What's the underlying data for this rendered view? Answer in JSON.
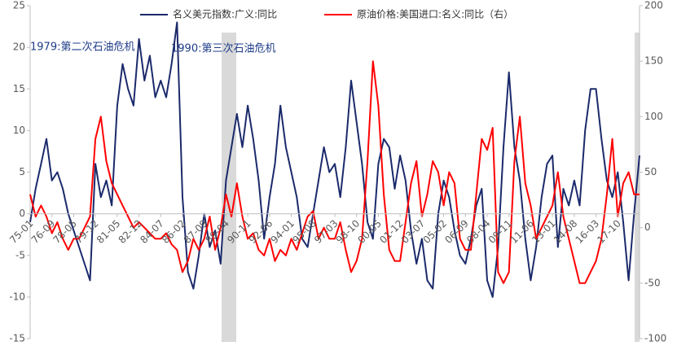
{
  "chart_data": {
    "type": "line",
    "annotations": [
      "1979:第二次石油危机",
      "1990:第三次石油危机"
    ],
    "categories": [
      "75-01",
      null,
      null,
      null,
      "76-09",
      null,
      null,
      null,
      "78-05",
      null,
      null,
      null,
      "79-12",
      null,
      null,
      null,
      "81-05",
      null,
      null,
      null,
      "82-12",
      null,
      null,
      null,
      "84-07",
      null,
      null,
      null,
      "86-02",
      null,
      null,
      null,
      "87-09",
      null,
      null,
      null,
      "89-04",
      null,
      null,
      null,
      "90-11",
      null,
      null,
      null,
      "92-06",
      null,
      null,
      null,
      "94-01",
      null,
      null,
      null,
      "95-08",
      null,
      null,
      null,
      "97-03",
      null,
      null,
      null,
      "98-10",
      null,
      null,
      null,
      "00-05",
      null,
      null,
      null,
      "01-12",
      null,
      null,
      null,
      "03-07",
      null,
      null,
      null,
      "05-02",
      null,
      null,
      null,
      "06-09",
      null,
      null,
      null,
      "08-04",
      null,
      null,
      null,
      "09-11",
      null,
      null,
      null,
      "11-06",
      null,
      null,
      null,
      "13-01",
      null,
      null,
      null,
      "14-08",
      null,
      null,
      null,
      "16-03",
      null,
      null,
      null,
      "17-10",
      null,
      null,
      null,
      null
    ],
    "series": [
      {
        "name": "名义美元指数:广义:同比",
        "color": "#1b2a6b",
        "axis": "y",
        "values": [
          -1,
          3,
          6,
          9,
          4,
          5,
          3,
          0,
          -2,
          -4,
          -6,
          -8,
          6,
          2,
          4,
          1,
          13,
          18,
          15,
          13,
          21,
          16,
          19,
          14,
          16,
          14,
          18,
          23,
          2,
          -7,
          -9,
          -5,
          0,
          -4,
          -2,
          -6,
          4,
          8,
          12,
          8,
          13,
          9,
          4,
          -3,
          2,
          6,
          13,
          8,
          5,
          2,
          -3,
          -4,
          0,
          4,
          8,
          5,
          6,
          2,
          8,
          16,
          11,
          6,
          -1,
          -3,
          6,
          9,
          8,
          3,
          7,
          4,
          -2,
          -6,
          -3,
          -8,
          -9,
          0,
          4,
          2,
          -2,
          -5,
          -6,
          -3,
          1,
          3,
          -8,
          -10,
          -4,
          8,
          17,
          8,
          4,
          -3,
          -8,
          -4,
          2,
          6,
          7,
          -4,
          3,
          1,
          4,
          1,
          10,
          15,
          15,
          9,
          4,
          2,
          5,
          -1,
          -8,
          0,
          7
        ]
      },
      {
        "name": "原油价格:美国进口:名义:同比（右）",
        "color": "#ff0000",
        "axis": "y2",
        "values": [
          30,
          10,
          20,
          10,
          -5,
          5,
          -10,
          -20,
          -10,
          -10,
          0,
          10,
          80,
          100,
          60,
          40,
          30,
          20,
          10,
          0,
          5,
          0,
          -5,
          -10,
          -10,
          -5,
          -15,
          -20,
          -40,
          -30,
          -10,
          -20,
          -10,
          10,
          -20,
          0,
          30,
          10,
          40,
          10,
          -10,
          -5,
          -20,
          -25,
          -10,
          -30,
          -20,
          -25,
          -10,
          -20,
          -5,
          10,
          15,
          -10,
          0,
          -10,
          -10,
          5,
          -20,
          -40,
          -30,
          -10,
          60,
          150,
          110,
          30,
          -20,
          -30,
          -30,
          5,
          40,
          60,
          10,
          30,
          60,
          50,
          20,
          50,
          40,
          -10,
          -20,
          -20,
          30,
          80,
          70,
          90,
          -40,
          -50,
          -40,
          60,
          100,
          40,
          20,
          -10,
          0,
          10,
          20,
          50,
          10,
          -10,
          -30,
          -50,
          -50,
          -40,
          -30,
          -10,
          30,
          80,
          10,
          40,
          50,
          30,
          30
        ]
      }
    ],
    "ylim": [
      -15,
      25
    ],
    "yticks": [
      -15,
      -10,
      -5,
      0,
      5,
      10,
      15,
      20,
      25
    ],
    "y2lim": [
      -100,
      200
    ],
    "y2ticks": [
      -100,
      -50,
      0,
      50,
      100,
      150,
      200
    ],
    "grid": false
  }
}
